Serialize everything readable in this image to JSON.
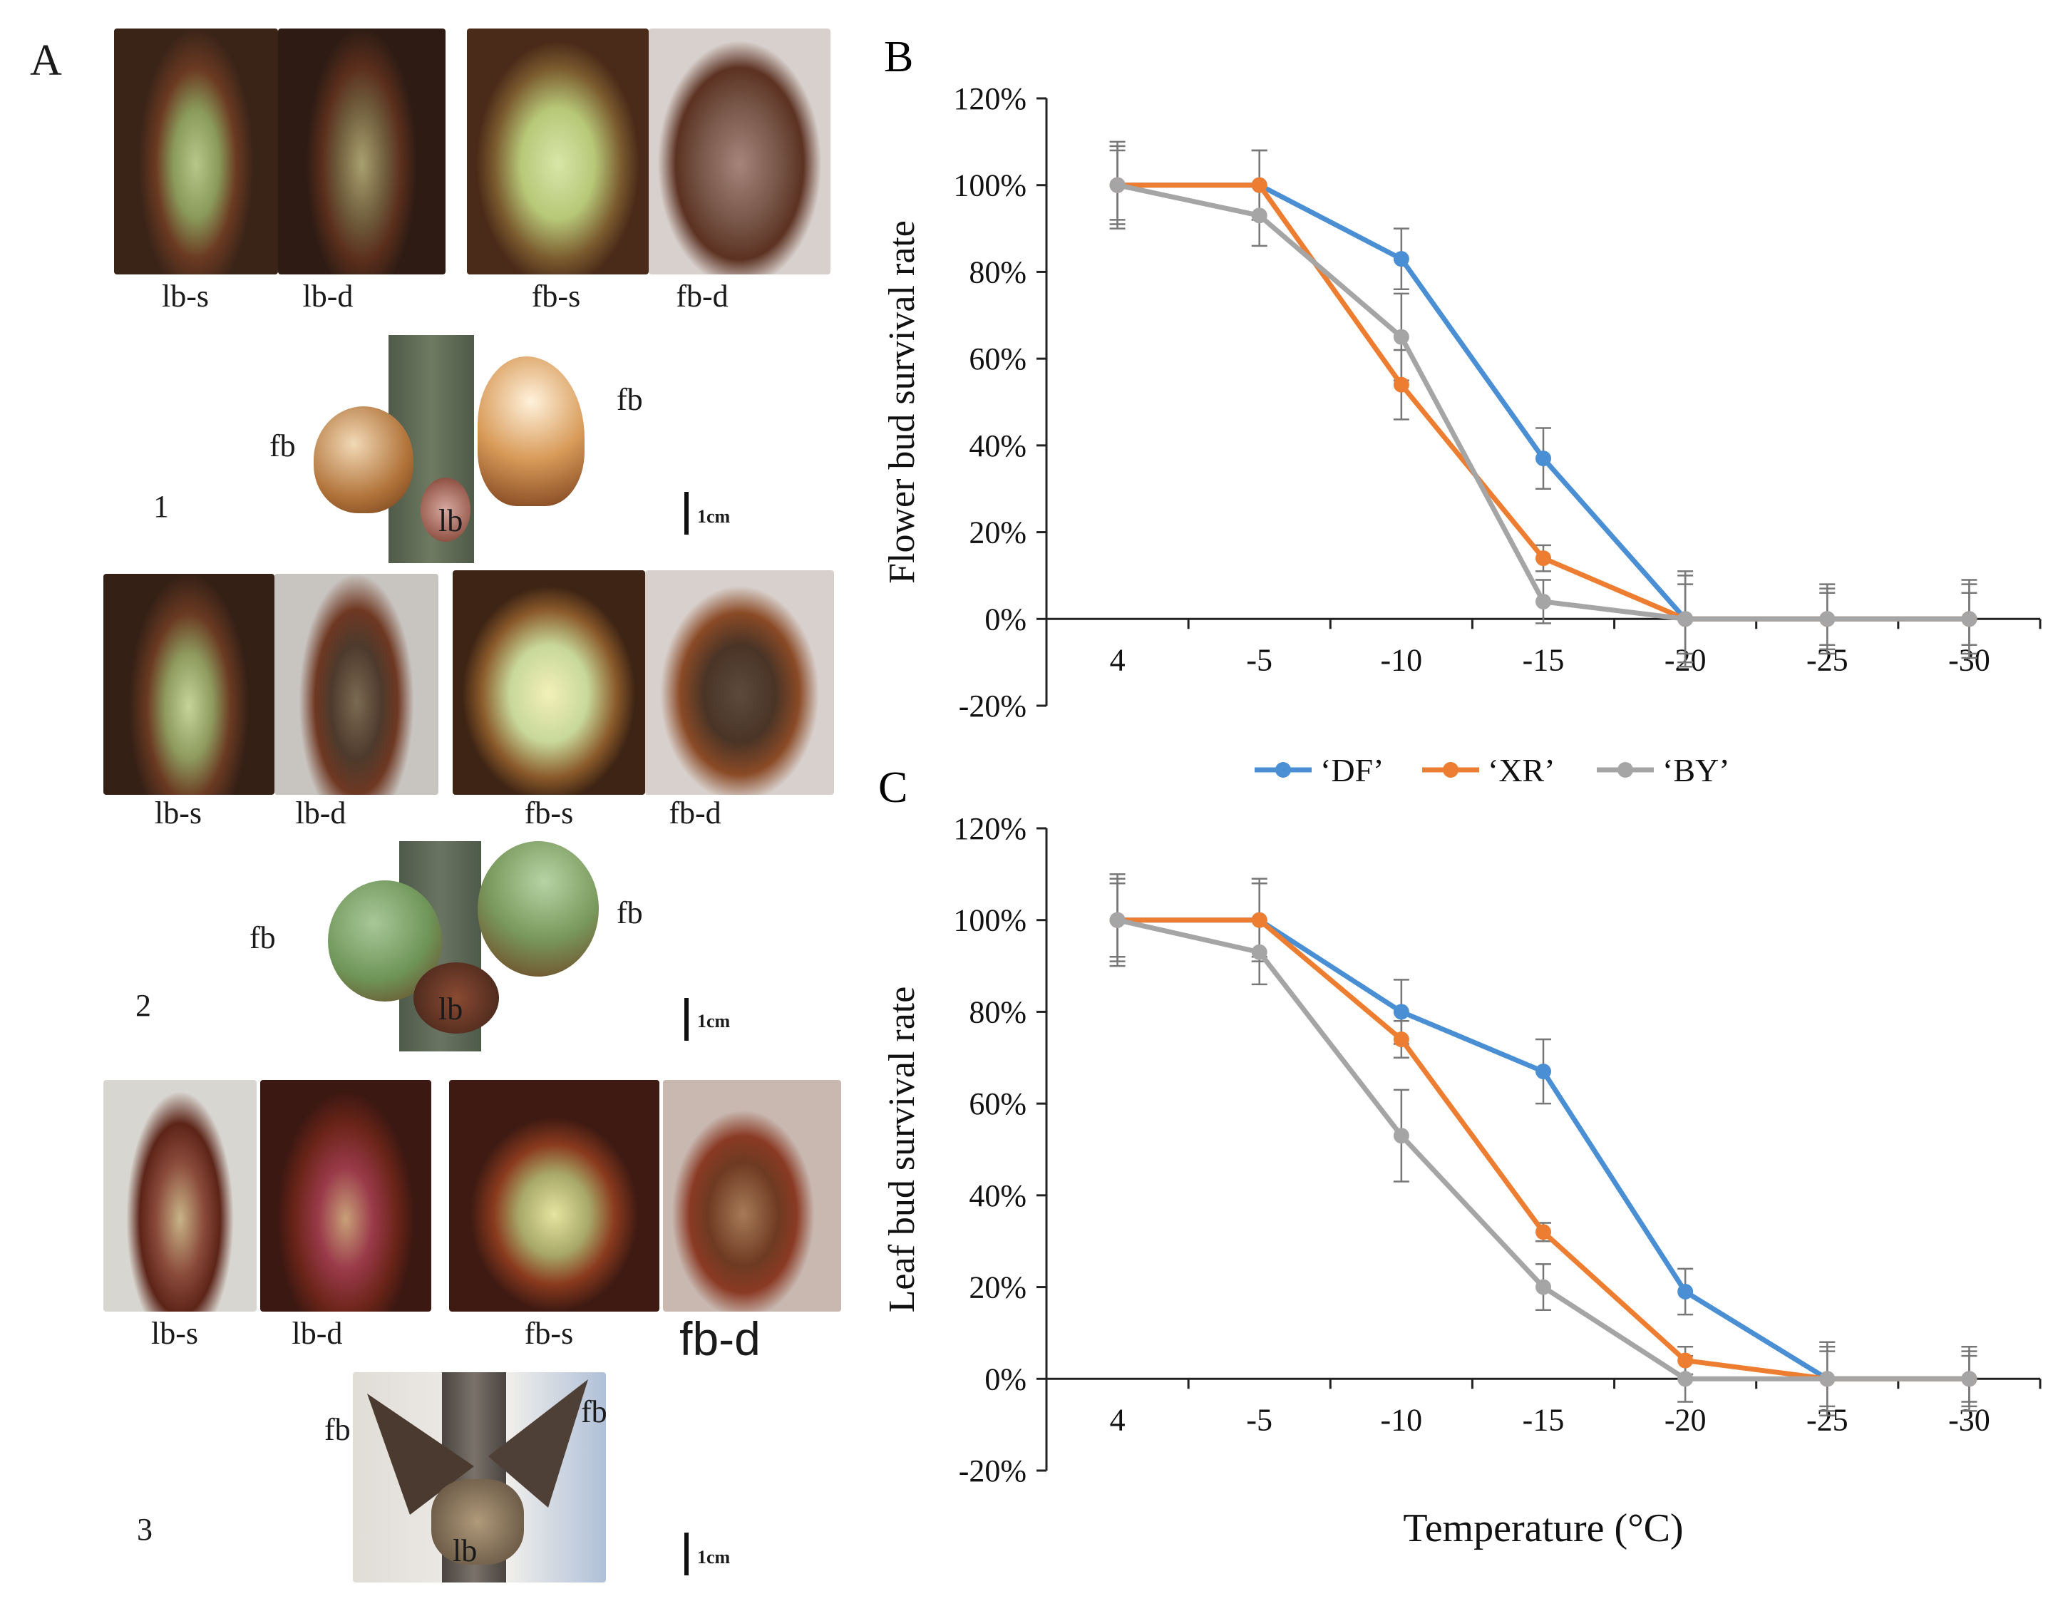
{
  "panelA": {
    "letter": "A",
    "rows": [
      {
        "index": "1",
        "captions": [
          "lb-s",
          "lb-d",
          "fb-s",
          "fb-d"
        ],
        "labels": {
          "fb_left": "fb",
          "fb_right": "fb",
          "lb": "lb"
        },
        "scale": "1cm"
      },
      {
        "index": "2",
        "captions": [
          "lb-s",
          "lb-d",
          "fb-s",
          "fb-d"
        ],
        "labels": {
          "fb_left": "fb",
          "fb_right": "fb",
          "lb": "lb"
        },
        "scale": "1cm"
      },
      {
        "index": "3",
        "captions": [
          "lb-s",
          "lb-d",
          "fb-s",
          "fb-d"
        ],
        "labels": {
          "fb_left": "fb",
          "fb_right": "fb",
          "lb": "lb"
        },
        "scale": "1cm"
      }
    ]
  },
  "legend": [
    "‘DF’",
    "‘XR’",
    "‘BY’"
  ],
  "colors": {
    "DF": "#4a8fd4",
    "XR": "#ed7d31",
    "BY": "#a5a5a5",
    "axis": "#222222"
  },
  "chart_data": [
    {
      "panel": "B",
      "type": "line",
      "xlabel": "",
      "ylabel": "Flower bud survival rate",
      "categories": [
        "4",
        "-5",
        "-10",
        "-15",
        "-20",
        "-25",
        "-30"
      ],
      "y_ticks": [
        "120%",
        "100%",
        "80%",
        "60%",
        "40%",
        "20%",
        "0%",
        "-20%"
      ],
      "ylim": [
        -20,
        120
      ],
      "series": [
        {
          "name": "‘DF’",
          "values": [
            100,
            100,
            83,
            37,
            0,
            0,
            0
          ],
          "errors": [
            10,
            8,
            7,
            7,
            10,
            8,
            8
          ]
        },
        {
          "name": "‘XR’",
          "values": [
            100,
            100,
            54,
            14,
            0,
            0,
            0
          ],
          "errors": [
            8,
            8,
            8,
            3,
            8,
            6,
            6
          ]
        },
        {
          "name": "‘BY’",
          "values": [
            100,
            93,
            65,
            4,
            0,
            0,
            0
          ],
          "errors": [
            9,
            7,
            10,
            5,
            11,
            7,
            9
          ]
        }
      ]
    },
    {
      "panel": "C",
      "type": "line",
      "xlabel": "Temperature (°C)",
      "ylabel": "Leaf bud survival rate",
      "categories": [
        "4",
        "-5",
        "-10",
        "-15",
        "-20",
        "-25",
        "-30"
      ],
      "y_ticks": [
        "120%",
        "100%",
        "80%",
        "60%",
        "40%",
        "20%",
        "0%",
        "-20%"
      ],
      "ylim": [
        -20,
        120
      ],
      "series": [
        {
          "name": "‘DF’",
          "values": [
            100,
            100,
            80,
            67,
            19,
            0,
            0
          ],
          "errors": [
            9,
            8,
            7,
            7,
            5,
            7,
            6
          ]
        },
        {
          "name": "‘XR’",
          "values": [
            100,
            100,
            74,
            32,
            4,
            0,
            0
          ],
          "errors": [
            8,
            9,
            4,
            2,
            3,
            6,
            5
          ]
        },
        {
          "name": "‘BY’",
          "values": [
            100,
            93,
            53,
            20,
            0,
            0,
            0
          ],
          "errors": [
            10,
            7,
            10,
            5,
            5,
            8,
            7
          ]
        }
      ]
    }
  ]
}
